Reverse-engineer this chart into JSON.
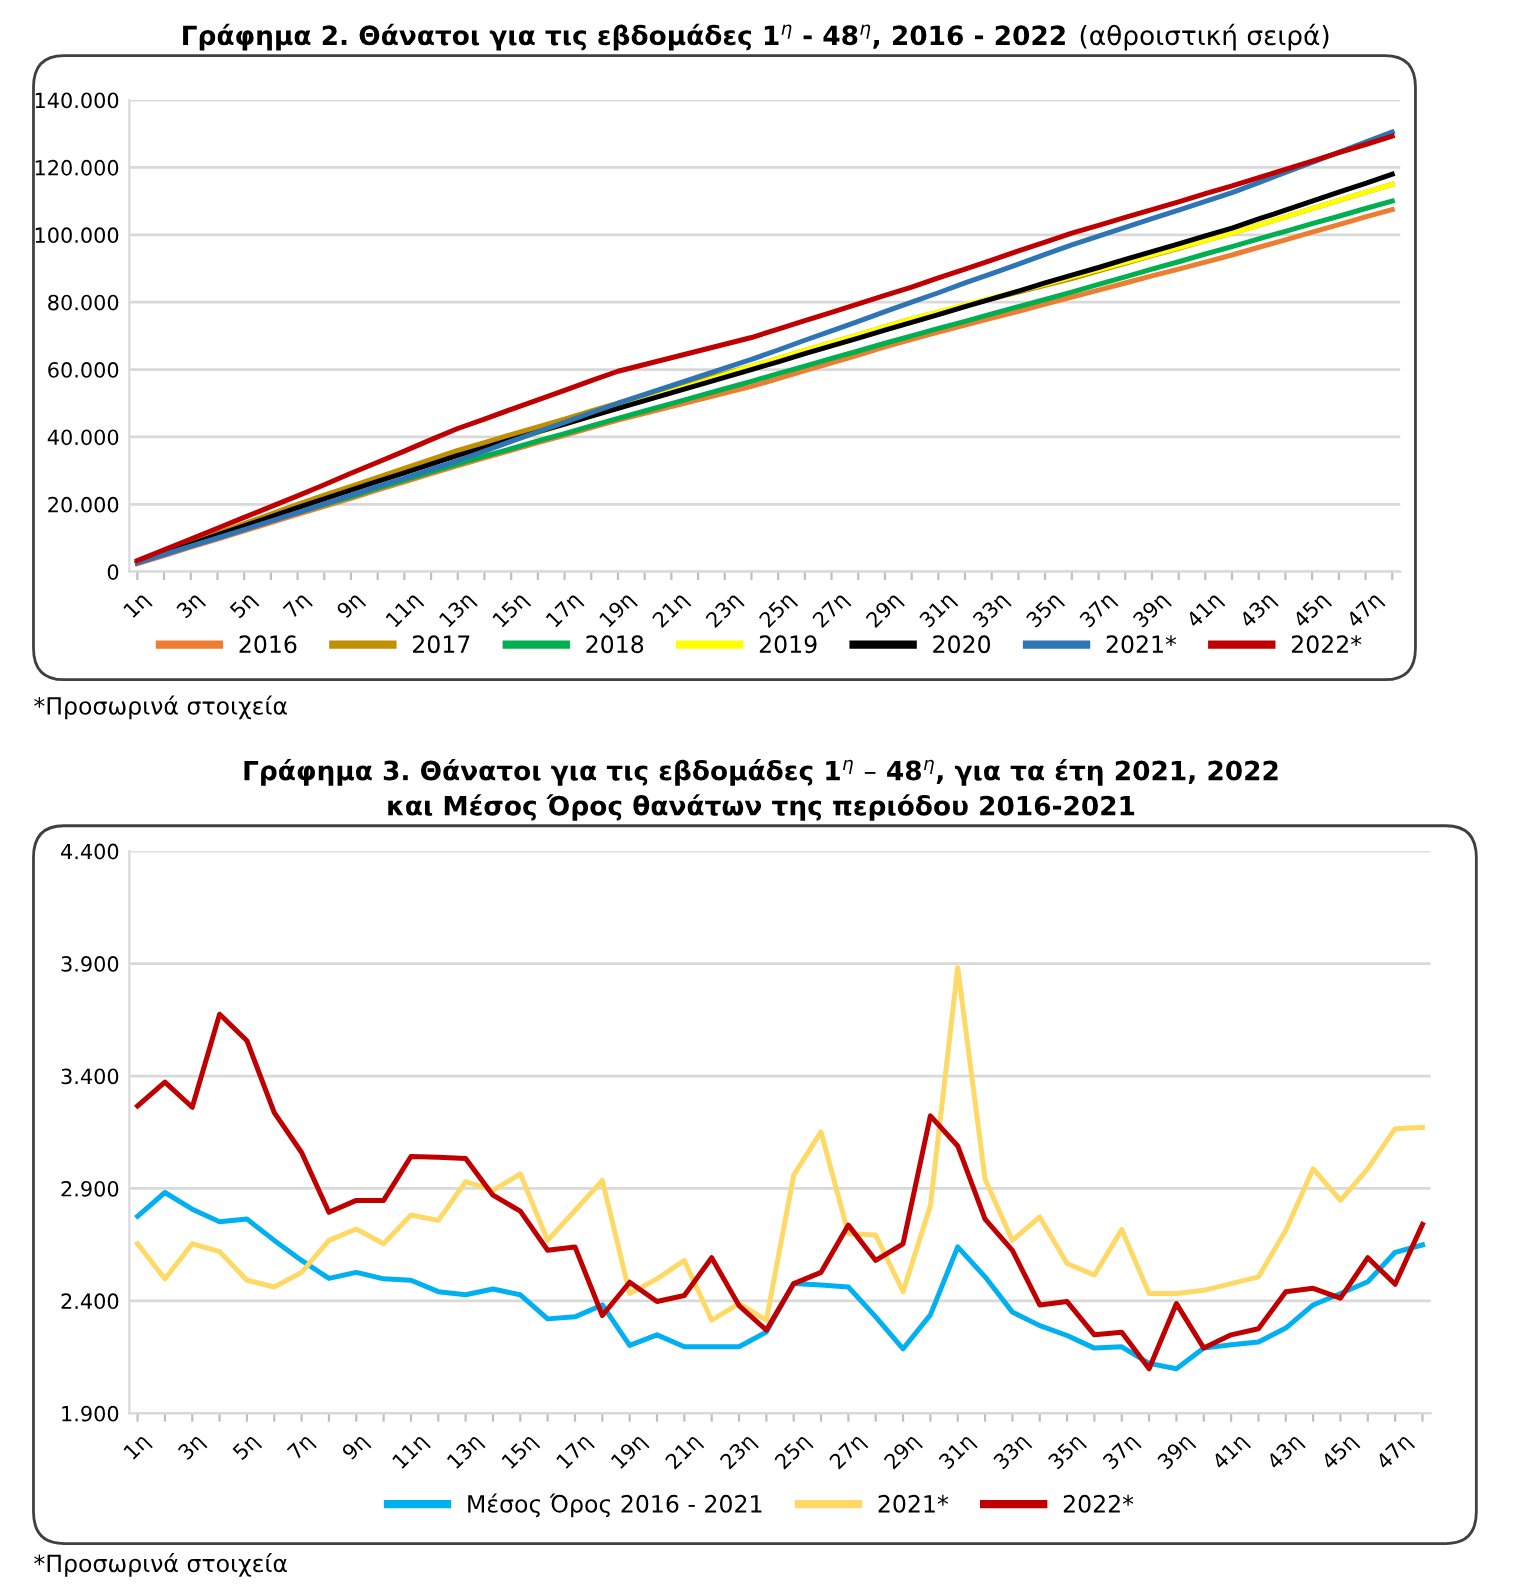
{
  "chart_data": [
    {
      "type": "line",
      "title": "Γράφημα 2. Θάνατοι για τις εβδομάδες 1$^{η}$ - 48$^{η}$, 2016 - 2022",
      "subtitle": "(αθροιστική σειρά)",
      "categories": [
        "1η",
        null,
        "3η",
        null,
        "5η",
        null,
        "7η",
        null,
        "9η",
        null,
        "11η",
        null,
        "13η",
        null,
        "15η",
        null,
        "17η",
        null,
        "19η",
        null,
        "21η",
        null,
        "23η",
        null,
        "25η",
        null,
        "27η",
        null,
        "29η",
        null,
        "31η",
        null,
        "33η",
        null,
        "35η",
        null,
        "37η",
        null,
        "39η",
        null,
        "41η",
        null,
        "43η",
        null,
        "45η",
        null,
        "47η",
        null
      ],
      "series": [
        {
          "name": "2016",
          "color": "#ed7d31",
          "values": [
            2400,
            4800,
            7300,
            9700,
            12100,
            14600,
            17000,
            19400,
            21800,
            24300,
            26700,
            29100,
            31500,
            33800,
            36000,
            38300,
            40500,
            42800,
            45000,
            47000,
            49000,
            51000,
            53000,
            55000,
            57300,
            59700,
            62000,
            64300,
            66700,
            69000,
            71100,
            73200,
            75300,
            77300,
            79400,
            81500,
            83600,
            85700,
            87800,
            89800,
            91900,
            94000,
            96300,
            98500,
            100800,
            103000,
            105300,
            107500
          ]
        },
        {
          "name": "2017",
          "color": "#bf9000",
          "values": [
            2800,
            5700,
            8500,
            11400,
            14300,
            17100,
            20000,
            22700,
            25300,
            28000,
            30700,
            33300,
            36000,
            38300,
            40700,
            43000,
            45300,
            47700,
            50000,
            52200,
            54400,
            56600,
            58800,
            61000,
            63300,
            65700,
            68000,
            70300,
            72700,
            75000,
            77000,
            79000,
            81000,
            83000,
            85000,
            87000,
            89300,
            91500,
            93800,
            96000,
            98300,
            100500,
            102900,
            105300,
            107800,
            110200,
            112600,
            115000
          ]
        },
        {
          "name": "2018",
          "color": "#00b050",
          "values": [
            null,
            null,
            null,
            null,
            null,
            null,
            17500,
            19900,
            22300,
            24800,
            27200,
            29600,
            32000,
            34300,
            36500,
            38800,
            41000,
            43300,
            45500,
            47700,
            49900,
            52100,
            54300,
            56500,
            58800,
            61000,
            63300,
            65500,
            67800,
            70000,
            72200,
            74300,
            76500,
            78700,
            80800,
            83000,
            85300,
            87500,
            89800,
            92000,
            94300,
            96500,
            98800,
            101000,
            103300,
            105500,
            107800,
            110000
          ]
        },
        {
          "name": "2019",
          "color": "#ffff00",
          "values": [
            null,
            null,
            null,
            null,
            null,
            null,
            null,
            null,
            null,
            null,
            null,
            null,
            null,
            null,
            38800,
            41300,
            43700,
            46100,
            48500,
            51000,
            53500,
            56000,
            58500,
            61000,
            63300,
            65700,
            68000,
            70300,
            72700,
            75000,
            77100,
            79200,
            81300,
            83300,
            85400,
            87500,
            89700,
            91800,
            94000,
            96200,
            98300,
            100500,
            102900,
            105300,
            107800,
            110200,
            112600,
            115000
          ]
        },
        {
          "name": "2020",
          "color": "#000000",
          "values": [
            2700,
            5400,
            8100,
            10900,
            13600,
            16300,
            19000,
            21600,
            24200,
            26800,
            29300,
            31900,
            34500,
            36800,
            39200,
            41500,
            43800,
            46200,
            48500,
            50800,
            53100,
            55400,
            57700,
            60000,
            62300,
            64700,
            67000,
            69300,
            71700,
            74000,
            76300,
            78700,
            81000,
            83300,
            85700,
            88000,
            90300,
            92700,
            95000,
            97300,
            99700,
            102000,
            104700,
            107300,
            110000,
            112700,
            115300,
            118000
          ]
        },
        {
          "name": "2021*",
          "color": "#2e75b6",
          "values": [
            2600,
            5100,
            7600,
            10000,
            12500,
            15000,
            17500,
            20100,
            22700,
            25300,
            27800,
            30400,
            33000,
            35800,
            38700,
            41500,
            44300,
            47200,
            50000,
            52600,
            55200,
            57800,
            60400,
            63000,
            65800,
            68700,
            71500,
            74300,
            77200,
            80000,
            82800,
            85700,
            88500,
            91300,
            94200,
            97000,
            99600,
            102200,
            104800,
            107300,
            109900,
            112500,
            115500,
            118500,
            121500,
            124500,
            127500,
            130500
          ]
        },
        {
          "name": "2022*",
          "color": "#c00000",
          "values": [
            3300,
            6500,
            9700,
            12900,
            16100,
            19300,
            22500,
            25800,
            29200,
            32500,
            35800,
            39200,
            42500,
            45300,
            48200,
            51000,
            53800,
            56700,
            59500,
            61500,
            63500,
            65500,
            67500,
            69500,
            72000,
            74500,
            77000,
            79500,
            82000,
            84500,
            87200,
            89800,
            92500,
            95200,
            97800,
            100500,
            102800,
            105200,
            107500,
            109800,
            112200,
            114500,
            117000,
            119400,
            121900,
            124400,
            126800,
            129300
          ]
        }
      ],
      "ylim": [
        0,
        140000
      ],
      "yticks": [
        0,
        {
          "value": 20000,
          "label": "20.000"
        },
        {
          "value": 40000,
          "label": "40.000"
        },
        {
          "value": 60000,
          "label": "60.000"
        },
        {
          "value": 80000,
          "label": "80.000"
        },
        {
          "value": 100000,
          "label": "100.000"
        },
        {
          "value": 120000,
          "label": "120.000"
        },
        {
          "value": 140000,
          "label": "140.000"
        }
      ],
      "grid": "y",
      "legend": "bottom",
      "marker": "none",
      "line_style": "solid",
      "annotations": [
        "*Προσωρινά στοιχεία"
      ]
    },
    {
      "type": "line",
      "title": "Γράφημα 3. Θάνατοι για τις εβδομάδες 1$^{η}$ – 48$^{η}$, για τα έτη 2021, 2022\nκαι Μέσος Όρος θανάτων της περιόδου 2016-2021",
      "categories": [
        "1η",
        null,
        "3η",
        null,
        "5η",
        null,
        "7η",
        null,
        "9η",
        null,
        "11η",
        null,
        "13η",
        null,
        "15η",
        null,
        "17η",
        null,
        "19η",
        null,
        "21η",
        null,
        "23η",
        null,
        "25η",
        null,
        "27η",
        null,
        "29η",
        null,
        "31η",
        null,
        "33η",
        null,
        "35η",
        null,
        "37η",
        null,
        "39η",
        null,
        "41η",
        null,
        "43η",
        null,
        "45η",
        null,
        "47η",
        null
      ],
      "series": [
        {
          "name": "Μέσος Όρος 2016 - 2021",
          "color": "#00b0f0",
          "values": [
            2776,
            2882,
            2808,
            2752,
            2764,
            2669,
            2580,
            2500,
            2527,
            2498,
            2492,
            2441,
            2427,
            2453,
            2427,
            2320,
            2329,
            2382,
            2202,
            2249,
            2196,
            2196,
            2196,
            2261,
            2477,
            2471,
            2462,
            2329,
            2187,
            2338,
            2640,
            2507,
            2350,
            2290,
            2246,
            2190,
            2196,
            2122,
            2098,
            2190,
            2205,
            2217,
            2279,
            2382,
            2433,
            2485,
            2616,
            2649
          ]
        },
        {
          "name": "2021*",
          "color": "#ffd966",
          "values": [
            2654,
            2498,
            2654,
            2619,
            2492,
            2462,
            2527,
            2669,
            2720,
            2654,
            2782,
            2758,
            2930,
            2891,
            2965,
            2669,
            2802,
            2936,
            2433,
            2498,
            2580,
            2314,
            2388,
            2314,
            2959,
            3152,
            2699,
            2693,
            2441,
            2823,
            3882,
            2941,
            2669,
            2773,
            2566,
            2515,
            2717,
            2433,
            2433,
            2447,
            2477,
            2507,
            2714,
            2988,
            2847,
            2988,
            3166,
            3172
          ]
        },
        {
          "name": "2022*",
          "color": "#c00000",
          "values": [
            3267,
            3373,
            3261,
            3675,
            3557,
            3237,
            3060,
            2794,
            2847,
            2847,
            3042,
            3039,
            3033,
            2870,
            2799,
            2625,
            2640,
            2335,
            2483,
            2397,
            2424,
            2592,
            2379,
            2270,
            2477,
            2527,
            2737,
            2580,
            2654,
            3223,
            3089,
            2764,
            2625,
            2382,
            2397,
            2249,
            2261,
            2098,
            2388,
            2190,
            2249,
            2276,
            2441,
            2456,
            2412,
            2592,
            2474,
            2740
          ]
        }
      ],
      "ylim": [
        1900,
        4400
      ],
      "yticks": [
        {
          "value": 1900,
          "label": "1.900"
        },
        {
          "value": 2400,
          "label": "2.400"
        },
        {
          "value": 2900,
          "label": "2.900"
        },
        {
          "value": 3400,
          "label": "3.400"
        },
        {
          "value": 3900,
          "label": "3.900"
        },
        {
          "value": 4400,
          "label": "4.400"
        }
      ],
      "grid": "y",
      "legend": "bottom",
      "marker": "none",
      "line_style": "solid",
      "annotations": [
        "*Προσωρινά στοιχεία"
      ]
    }
  ]
}
